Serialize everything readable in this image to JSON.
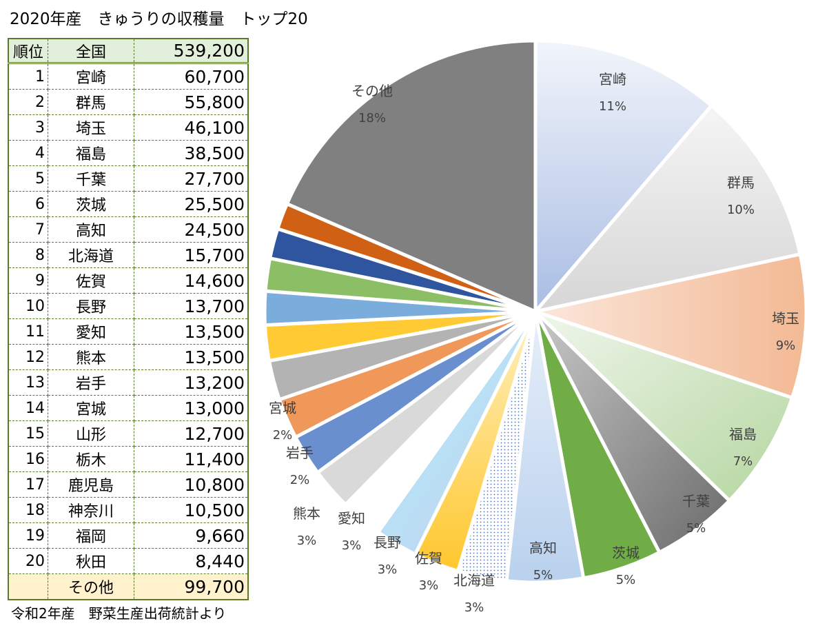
{
  "title": "2020年産　きゅうりの収穫量　トップ20",
  "footer": "令和2年産　野菜生産出荷統計より",
  "table": {
    "header": {
      "rank": "順位",
      "name": "全国",
      "value": "539,200"
    },
    "rows": [
      {
        "rank": "1",
        "name": "宮崎",
        "value": "60,700"
      },
      {
        "rank": "2",
        "name": "群馬",
        "value": "55,800"
      },
      {
        "rank": "3",
        "name": "埼玉",
        "value": "46,100"
      },
      {
        "rank": "4",
        "name": "福島",
        "value": "38,500"
      },
      {
        "rank": "5",
        "name": "千葉",
        "value": "27,700"
      },
      {
        "rank": "6",
        "name": "茨城",
        "value": "25,500"
      },
      {
        "rank": "7",
        "name": "高知",
        "value": "24,500"
      },
      {
        "rank": "8",
        "name": "北海道",
        "value": "15,700"
      },
      {
        "rank": "9",
        "name": "佐賀",
        "value": "14,600"
      },
      {
        "rank": "10",
        "name": "長野",
        "value": "13,700"
      },
      {
        "rank": "11",
        "name": "愛知",
        "value": "13,500"
      },
      {
        "rank": "12",
        "name": "熊本",
        "value": "13,500"
      },
      {
        "rank": "13",
        "name": "岩手",
        "value": "13,200"
      },
      {
        "rank": "14",
        "name": "宮城",
        "value": "13,000"
      },
      {
        "rank": "15",
        "name": "山形",
        "value": "12,700"
      },
      {
        "rank": "16",
        "name": "栃木",
        "value": "11,400"
      },
      {
        "rank": "17",
        "name": "鹿児島",
        "value": "10,800"
      },
      {
        "rank": "18",
        "name": "神奈川",
        "value": "10,500"
      },
      {
        "rank": "19",
        "name": "福岡",
        "value": "9,660"
      },
      {
        "rank": "20",
        "name": "秋田",
        "value": "8,440"
      }
    ],
    "other": {
      "name": "その他",
      "value": "99,700"
    }
  },
  "chart_data": {
    "type": "pie",
    "title": "2020年産　きゅうりの収穫量　トップ20",
    "categories": [
      "宮崎",
      "群馬",
      "埼玉",
      "福島",
      "千葉",
      "茨城",
      "高知",
      "北海道",
      "佐賀",
      "長野",
      "愛知",
      "熊本",
      "岩手",
      "宮城",
      "山形",
      "栃木",
      "鹿児島",
      "神奈川",
      "福岡",
      "秋田",
      "その他"
    ],
    "values": [
      60700,
      55800,
      46100,
      38500,
      27700,
      25500,
      24500,
      15700,
      14600,
      13700,
      13500,
      13500,
      13200,
      13000,
      12700,
      11400,
      10800,
      10500,
      9660,
      8440,
      99700
    ],
    "labels": [
      {
        "name": "宮崎",
        "pct": "11%"
      },
      {
        "name": "群馬",
        "pct": "10%"
      },
      {
        "name": "埼玉",
        "pct": "9%"
      },
      {
        "name": "福島",
        "pct": "7%"
      },
      {
        "name": "千葉",
        "pct": "5%"
      },
      {
        "name": "茨城",
        "pct": "5%"
      },
      {
        "name": "高知",
        "pct": "5%"
      },
      {
        "name": "北海道",
        "pct": "3%"
      },
      {
        "name": "佐賀",
        "pct": "3%"
      },
      {
        "name": "長野",
        "pct": "3%"
      },
      {
        "name": "愛知",
        "pct": "3%"
      },
      {
        "name": "熊本",
        "pct": "3%"
      },
      {
        "name": "岩手",
        "pct": "2%"
      },
      {
        "name": "宮城",
        "pct": "2%"
      },
      {
        "name": "その他",
        "pct": "18%"
      }
    ],
    "colors": [
      "url(#g0)",
      "url(#g1)",
      "url(#g2)",
      "url(#g3)",
      "url(#g4)",
      "#70ad47",
      "url(#g6)",
      "url(#dots)",
      "url(#g8)",
      "url(#g9)",
      "#ffffff",
      "#d9d9d9",
      "#6a8fcf",
      "#f0975a",
      "#b3b3b3",
      "#ffca33",
      "#7aaddb",
      "#8cbf65",
      "#2f559e",
      "#d06014",
      "#808080"
    ]
  }
}
